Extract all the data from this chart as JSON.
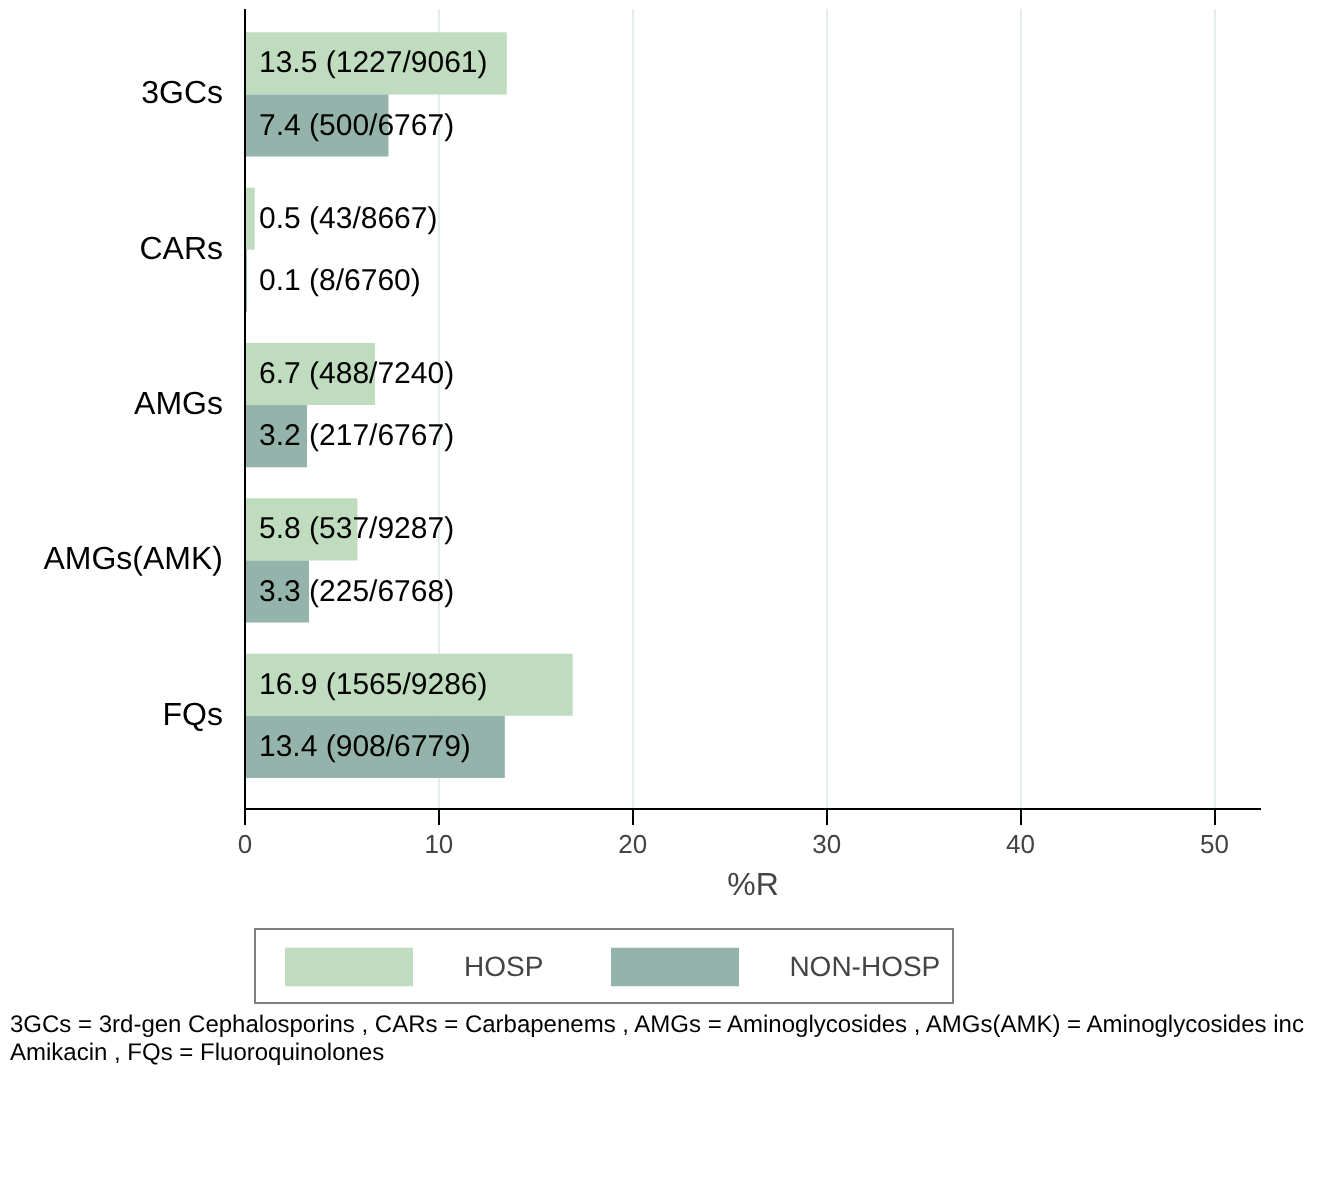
{
  "chart_data": {
    "type": "bar",
    "orientation": "horizontal",
    "xlabel": "%R",
    "categories": [
      "3GCs",
      "CARs",
      "AMGs",
      "AMGs(AMK)",
      "FQs"
    ],
    "series": [
      {
        "name": "HOSP",
        "color": "#bfdcbf",
        "values": [
          13.5,
          0.5,
          6.7,
          5.8,
          16.9
        ],
        "value_labels": [
          "13.5 (1227/9061)",
          "0.5 (43/8667)",
          "6.7 (488/7240)",
          "5.8 (537/9287)",
          "16.9 (1565/9286)"
        ]
      },
      {
        "name": "NON-HOSP",
        "color": "#94b3ab",
        "values": [
          7.4,
          0.1,
          3.2,
          3.3,
          13.4
        ],
        "value_labels": [
          "7.4 (500/6767)",
          "0.1 (8/6760)",
          "3.2 (217/6767)",
          "3.3 (225/6768)",
          "13.4 (908/6779)"
        ]
      }
    ],
    "xlim": [
      0,
      52.4
    ],
    "xticks": [
      0,
      10,
      20,
      30,
      40,
      50
    ],
    "grid": "x",
    "legend": "bottom",
    "annotations": [
      "3GCs = 3rd-gen Cephalosporins , CARs = Carbapenems , AMGs = Aminoglycosides , AMGs(AMK) = Aminoglycosides inc Amikacin , FQs = Fluoroquinolones"
    ]
  }
}
